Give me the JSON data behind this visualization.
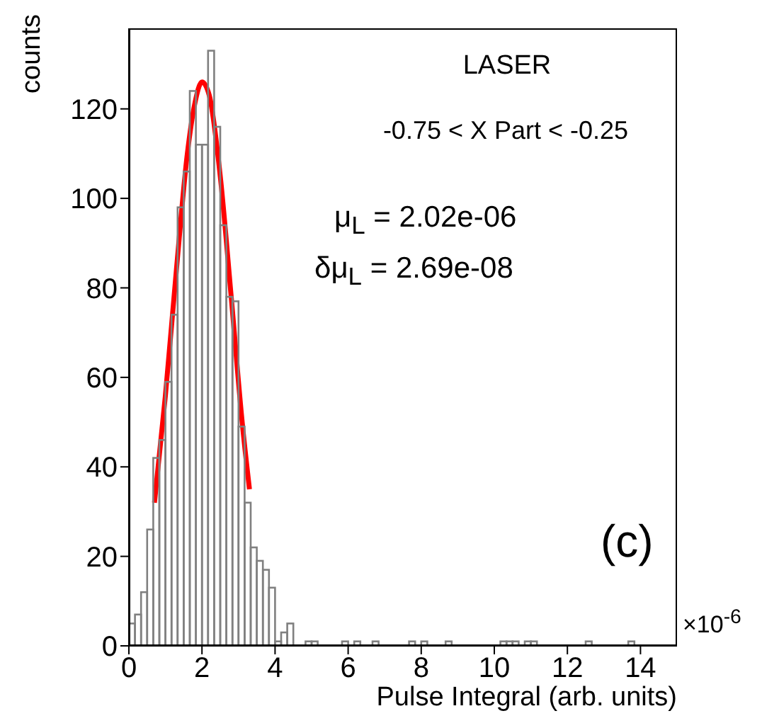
{
  "chart_data": {
    "type": "histogram",
    "xlabel": "Pulse Integral (arb. units)",
    "ylabel": "counts",
    "annotations": [
      "LASER",
      "-0.75 < X Part < -0.25",
      "μ$_{L}$ = 2.02e-06",
      "δμ$_{L}$ = 2.69e-08",
      "(c)",
      "×10$^{-6}$"
    ],
    "bins": [
      0,
      0.1667,
      0.3333,
      0.5,
      0.6667,
      0.8333,
      1,
      1.1667,
      1.3333,
      1.5,
      1.6667,
      1.8333,
      2,
      2.1667,
      2.3333,
      2.5,
      2.6667,
      2.8333,
      3,
      3.1667,
      3.3333,
      3.5,
      3.6667,
      3.8333,
      4,
      4.1667,
      4.3333,
      4.5,
      4.6667,
      4.8333,
      5,
      5.1667,
      5.3333,
      5.5,
      5.6667,
      5.8333,
      6,
      6.1667,
      6.3333,
      6.5,
      6.6667,
      6.8333,
      7,
      7.1667,
      7.3333,
      7.5,
      7.6667,
      7.8333,
      8,
      8.1667,
      8.3333,
      8.5,
      8.6667,
      8.8333,
      9,
      9.1667,
      9.3333,
      9.5,
      9.6667,
      9.8333,
      10,
      10.1667,
      10.3333,
      10.5,
      10.6667,
      10.8333,
      11,
      11.1667,
      11.3333,
      11.5,
      11.6667,
      11.8333,
      12,
      12.1667,
      12.3333,
      12.5,
      12.6667,
      12.8333,
      13,
      13.1667,
      13.3333,
      13.5,
      13.6667,
      13.8333,
      14,
      14.1667,
      14.3333,
      14.5,
      14.6667,
      14.8333,
      15
    ],
    "series": [
      {
        "color": "#808080",
        "values": [
          5,
          7,
          12,
          26,
          42,
          46,
          59,
          74,
          98,
          106,
          124,
          112,
          112,
          133,
          116,
          94,
          78,
          77,
          49,
          32,
          22,
          19,
          17,
          13,
          1,
          3,
          5,
          0,
          0,
          1,
          1,
          0,
          0,
          0,
          0,
          1,
          0,
          1,
          0,
          0,
          1,
          0,
          0,
          0,
          0,
          0,
          1,
          0,
          1,
          0,
          0,
          0,
          1,
          0,
          0,
          0,
          0,
          0,
          0,
          0,
          0,
          1,
          1,
          1,
          0,
          1,
          1,
          0,
          0,
          0,
          0,
          0,
          0,
          0,
          0,
          1,
          0,
          0,
          0,
          0,
          0,
          0,
          1,
          0,
          0,
          0,
          0,
          0,
          0,
          0
        ]
      },
      {
        "type": "line",
        "color": "#ff0000",
        "x": [
          0.7,
          1.0,
          1.3,
          1.6,
          1.8,
          2.0,
          2.2,
          2.5,
          2.8,
          3.1,
          3.3
        ],
        "values": [
          32,
          56,
          84,
          110,
          121,
          126,
          123,
          105,
          78,
          50,
          35
        ]
      }
    ],
    "xlim": [
      0,
      15
    ],
    "xticks": [
      0,
      2,
      4,
      6,
      8,
      10,
      12,
      14
    ],
    "ylim": [
      0,
      138
    ],
    "yticks": [
      0,
      20,
      40,
      60,
      80,
      100,
      120
    ]
  }
}
